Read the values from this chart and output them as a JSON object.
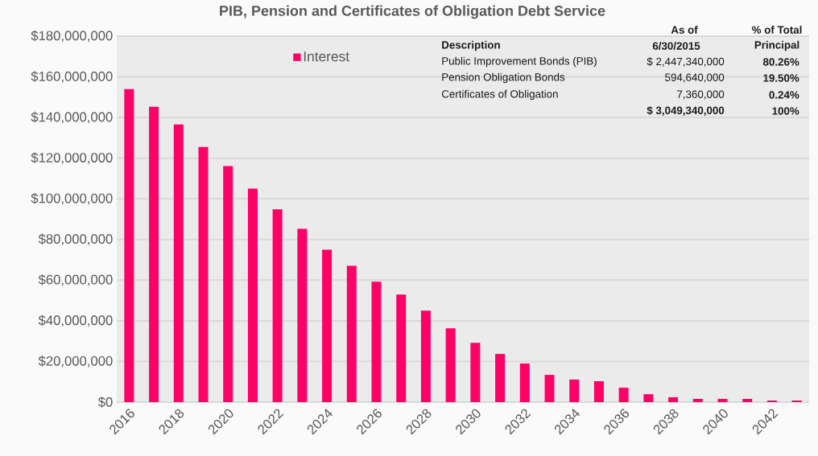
{
  "chart_data": {
    "type": "bar",
    "title": "PIB, Pension and Certificates of Obligation Debt Service",
    "categories": [
      "2016",
      null,
      "2018",
      null,
      "2020",
      null,
      "2022",
      null,
      "2024",
      null,
      "2026",
      null,
      "2028",
      null,
      "2030",
      null,
      "2032",
      null,
      "2034",
      null,
      "2036",
      null,
      "2038",
      null,
      "2040",
      null,
      "2042",
      null
    ],
    "series": [
      {
        "name": "Interest",
        "color": "#ff0066",
        "values": [
          154000000,
          145300000,
          136600000,
          125500000,
          116100000,
          105000000,
          94800000,
          85300000,
          75000000,
          67100000,
          59200000,
          52900000,
          45000000,
          36300000,
          29200000,
          23700000,
          19000000,
          13400000,
          11100000,
          10300000,
          7100000,
          3900000,
          2400000,
          1600000,
          1600000,
          1600000,
          800000,
          800000
        ]
      }
    ],
    "ylim": [
      0,
      180000000
    ],
    "yticks": [
      {
        "value": 0,
        "label": "$0"
      },
      {
        "value": 20000000,
        "label": "$20,000,000"
      },
      {
        "value": 40000000,
        "label": "$40,000,000"
      },
      {
        "value": 60000000,
        "label": "$60,000,000"
      },
      {
        "value": 80000000,
        "label": "$80,000,000"
      },
      {
        "value": 100000000,
        "label": "$100,000,000"
      },
      {
        "value": 120000000,
        "label": "$120,000,000"
      },
      {
        "value": 140000000,
        "label": "$140,000,000"
      },
      {
        "value": 160000000,
        "label": "$160,000,000"
      },
      {
        "value": 180000000,
        "label": "$180,000,000"
      }
    ],
    "grid": "y",
    "legend": "top left",
    "annotations": [
      "As of",
      "% of Total",
      "Description",
      "6/30/2015",
      "Principal",
      "Public Improvement Bonds (PIB)",
      "$ 2,447,340,000",
      "80.26%",
      "Pension Obligation Bonds",
      "594,640,000",
      "19.50%",
      "Certificates of Obligation",
      "7,360,000",
      "0.24%",
      "$ 3,049,340,000",
      "100%"
    ]
  }
}
